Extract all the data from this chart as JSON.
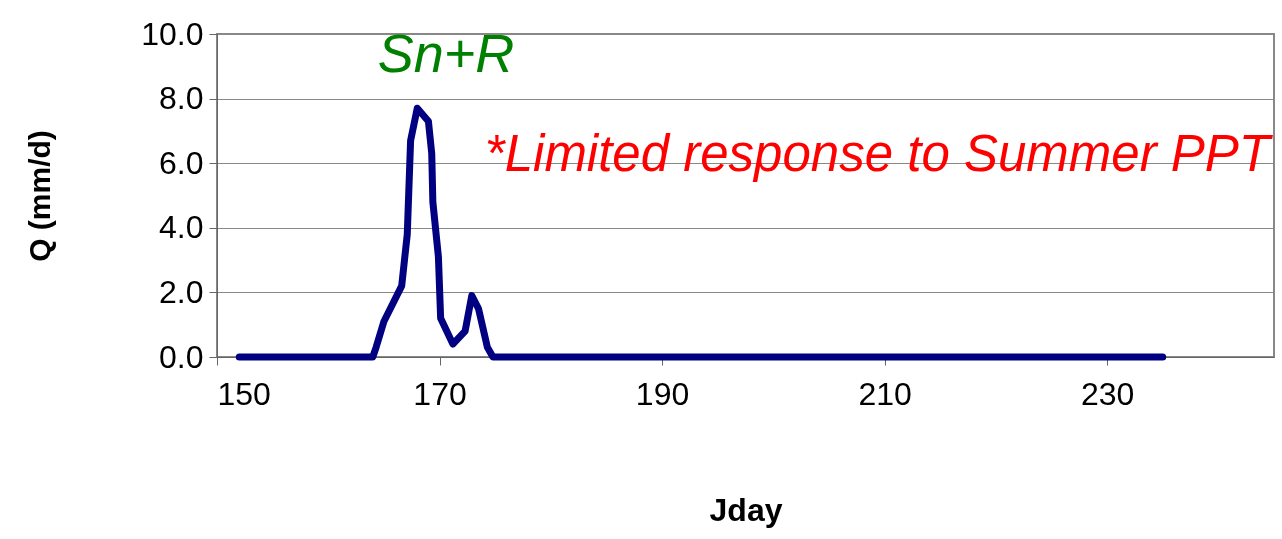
{
  "chart_data": {
    "type": "line",
    "xlabel": "Jday",
    "ylabel": "Q (mm/d)",
    "x": [
      152,
      164,
      164.3,
      165,
      166.6,
      167.1,
      167.4,
      168,
      169,
      169.3,
      169.4,
      169.9,
      170.1,
      171.2,
      172.3,
      172.9,
      173.5,
      174.3,
      174.8,
      235
    ],
    "series": [
      {
        "color": "#000080",
        "values": [
          0,
          0,
          0.3,
          1.1,
          2.2,
          3.8,
          6.7,
          7.7,
          7.3,
          6.3,
          4.8,
          3.1,
          1.2,
          0.4,
          0.8,
          1.9,
          1.5,
          0.3,
          0,
          0
        ]
      }
    ],
    "xlim": [
      150,
      245
    ],
    "xticks": [
      150,
      170,
      190,
      210,
      230
    ],
    "ylim": [
      0,
      10
    ],
    "yticks": [
      {
        "value": 0,
        "label": "0.0"
      },
      {
        "value": 2,
        "label": "2.0"
      },
      {
        "value": 4,
        "label": "4.0"
      },
      {
        "value": 6,
        "label": "6.0"
      },
      {
        "value": 8,
        "label": "8.0"
      },
      {
        "value": 10,
        "label": "10.0"
      }
    ],
    "grid": "y",
    "marker": "none",
    "line_style": "solid",
    "annotations": [
      "Sn+R",
      "*Limited response to Summer PPT"
    ]
  }
}
